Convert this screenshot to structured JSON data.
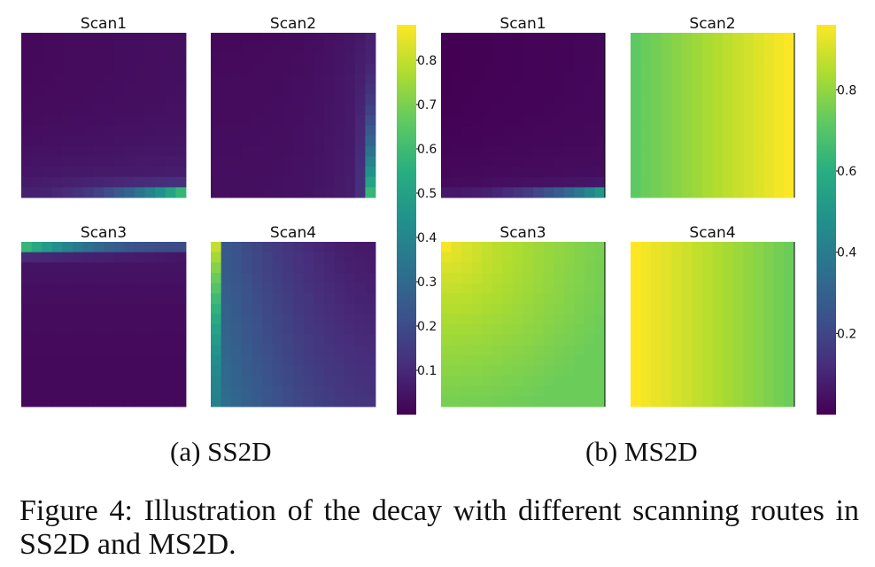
{
  "figure": {
    "caption_label": "Figure 4:",
    "caption_text": "Illustration of the decay with different scanning routes in SS2D and MS2D."
  },
  "chart_data": [
    {
      "type": "heatmap",
      "subfigure_label": "(a) SS2D",
      "colormap": "viridis",
      "colorbar": {
        "min": 0.0,
        "max": 0.88,
        "ticks": [
          "0.1",
          "0.2",
          "0.3",
          "0.4",
          "0.5",
          "0.6",
          "0.7",
          "0.8"
        ]
      },
      "panels": [
        {
          "title": "Scan1",
          "pattern": "bottom-row",
          "params": {
            "bg": 0.02,
            "row": 0.08,
            "maxv": 0.58,
            "mid": 0.1,
            "near": 0.05
          }
        },
        {
          "title": "Scan2",
          "pattern": "right-col",
          "params": {
            "bg": 0.02,
            "col": 0.08,
            "maxv": 0.58,
            "mid": 0.1,
            "near": 0.05
          }
        },
        {
          "title": "Scan3",
          "pattern": "top-row",
          "params": {
            "bg": 0.02,
            "row": 0.2,
            "maxv": 0.58,
            "mid": 0.08,
            "near": 0.04
          }
        },
        {
          "title": "Scan4",
          "pattern": "left-col",
          "params": {
            "bg": 0.06,
            "col": 0.38,
            "maxv": 0.8,
            "mid": 0.2,
            "near": 0.07
          }
        }
      ]
    },
    {
      "type": "heatmap",
      "subfigure_label": "(b) MS2D",
      "colormap": "viridis",
      "colorbar": {
        "min": 0.0,
        "max": 0.96,
        "ticks": [
          "0.2",
          "0.4",
          "0.6",
          "0.8"
        ]
      },
      "panels": [
        {
          "title": "Scan1",
          "pattern": "bottom-row",
          "params": {
            "bg": 0.0,
            "row": 0.06,
            "maxv": 0.5,
            "mid": 0.06,
            "near": 0.03
          }
        },
        {
          "title": "Scan2",
          "pattern": "x-gradient",
          "params": {
            "from": 0.72,
            "to": 0.96
          }
        },
        {
          "title": "Scan3",
          "pattern": "tl-gradient",
          "params": {
            "from": 0.95,
            "to": 0.74
          }
        },
        {
          "title": "Scan4",
          "pattern": "x-gradient",
          "params": {
            "from": 0.96,
            "to": 0.74
          }
        }
      ]
    }
  ]
}
